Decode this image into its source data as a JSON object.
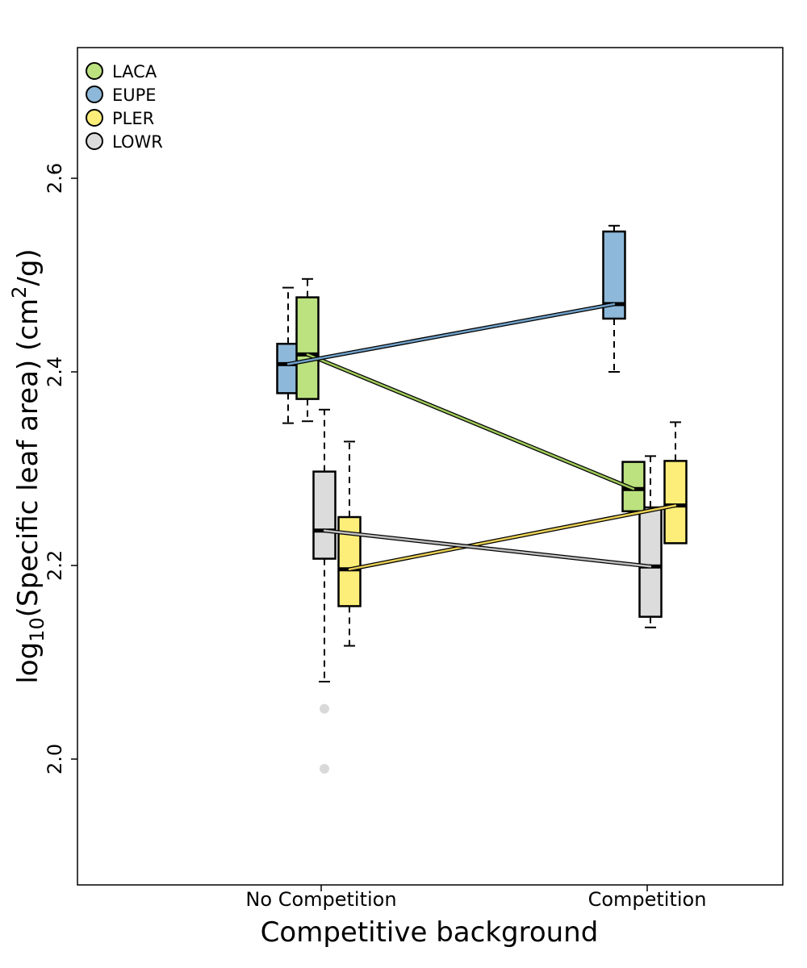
{
  "chart_data": {
    "type": "box",
    "xlabel": "Competitive background",
    "ylabel_main": "log",
    "ylabel_sub": "10",
    "ylabel_mid": "(Specific leaf area) (cm",
    "ylabel_sup": "2",
    "ylabel_end": "/g)",
    "categories": [
      "No Competition",
      "Competition"
    ],
    "ylim": [
      1.87,
      2.735
    ],
    "yticks": [
      2.0,
      2.2,
      2.4,
      2.6
    ],
    "ytick_labels": [
      "2.0",
      "2.2",
      "2.4",
      "2.6"
    ],
    "legend_position": "top-left",
    "outlier_color": "#d9d9d9",
    "series": [
      {
        "name": "LACA",
        "color": "#bce27f",
        "line_color": "#9fc95a",
        "boxes": [
          {
            "category": "No Competition",
            "whisker_low": 2.349,
            "q1": 2.372,
            "median": 2.418,
            "q3": 2.477,
            "whisker_high": 2.496,
            "outliers": []
          },
          {
            "category": "Competition",
            "whisker_low": 2.254,
            "q1": 2.256,
            "median": 2.279,
            "q3": 2.307,
            "whisker_high": 2.307,
            "outliers": []
          }
        ]
      },
      {
        "name": "EUPE",
        "color": "#8db8d9",
        "line_color": "#6fa0c8",
        "boxes": [
          {
            "category": "No Competition",
            "whisker_low": 2.347,
            "q1": 2.378,
            "median": 2.408,
            "q3": 2.429,
            "whisker_high": 2.487,
            "outliers": []
          },
          {
            "category": "Competition",
            "whisker_low": 2.4,
            "q1": 2.455,
            "median": 2.47,
            "q3": 2.545,
            "whisker_high": 2.551,
            "outliers": []
          }
        ]
      },
      {
        "name": "PLER",
        "color": "#fdee7a",
        "line_color": "#e8cf55",
        "boxes": [
          {
            "category": "No Competition",
            "whisker_low": 2.117,
            "q1": 2.158,
            "median": 2.196,
            "q3": 2.25,
            "whisker_high": 2.328,
            "outliers": []
          },
          {
            "category": "Competition",
            "whisker_low": 2.223,
            "q1": 2.223,
            "median": 2.262,
            "q3": 2.308,
            "whisker_high": 2.348,
            "outliers": []
          }
        ]
      },
      {
        "name": "LOWR",
        "color": "#dcdcdc",
        "line_color": "#bdbdbd",
        "boxes": [
          {
            "category": "No Competition",
            "whisker_low": 2.08,
            "q1": 2.207,
            "median": 2.236,
            "q3": 2.297,
            "whisker_high": 2.361,
            "outliers": [
              2.052,
              1.99
            ]
          },
          {
            "category": "Competition",
            "whisker_low": 2.136,
            "q1": 2.147,
            "median": 2.199,
            "q3": 2.26,
            "whisker_high": 2.313,
            "outliers": []
          }
        ]
      }
    ]
  }
}
